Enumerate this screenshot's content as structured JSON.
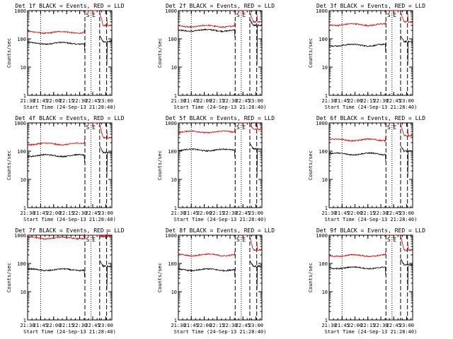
{
  "window": {
    "width": 640,
    "height": 480
  },
  "chart_data": [
    {
      "type": "line",
      "title": "Det 1f BLACK = Events, RED = LLD",
      "xlabel": "Start Time (24-Sep-13 21:28:40)",
      "ylabel": "Counts/sec",
      "yscale": "log",
      "ylim": [
        1,
        1000
      ],
      "xlim": [
        "21:30",
        "23:07"
      ],
      "x_ticks": [
        "21:30",
        "21:45",
        "22:00",
        "22:15",
        "22:30",
        "22:45",
        "23:00"
      ],
      "y_ticks": [
        "1",
        "10",
        "100",
        "1000"
      ],
      "series": [
        {
          "color": "#000000",
          "level_before": 70,
          "level_after": 80
        },
        {
          "color": "#e00000",
          "level_before": 170,
          "level_after": 300
        }
      ],
      "markers": [
        {
          "time": "21:45",
          "style": "dotted"
        },
        {
          "time": "22:36",
          "style": "dashed",
          "label": "S"
        },
        {
          "time": "22:43",
          "style": "dotted",
          "label": "E"
        },
        {
          "time": "22:53",
          "style": "dashed"
        },
        {
          "time": "23:01",
          "style": "dashed"
        }
      ]
    },
    {
      "type": "line",
      "title": "Det 2f BLACK = Events, RED = LLD",
      "xlabel": "Start Time (24-Sep-13 21:28:40)",
      "ylabel": "Counts/sec",
      "yscale": "log",
      "ylim": [
        1,
        1000
      ],
      "xlim": [
        "21:30",
        "23:07"
      ],
      "x_ticks": [
        "21:30",
        "21:45",
        "22:00",
        "22:15",
        "22:30",
        "22:45",
        "23:00"
      ],
      "y_ticks": [
        "1",
        "10",
        "100",
        "1000"
      ],
      "series": [
        {
          "color": "#000000",
          "level_before": 200,
          "level_after": 300
        },
        {
          "color": "#e00000",
          "level_before": 280,
          "level_after": 400
        }
      ],
      "markers": [
        {
          "time": "21:45",
          "style": "dotted"
        },
        {
          "time": "22:36",
          "style": "dashed",
          "label": "S"
        },
        {
          "time": "22:43",
          "style": "dotted",
          "label": "E"
        },
        {
          "time": "22:53",
          "style": "dashed"
        },
        {
          "time": "23:01",
          "style": "dashed"
        }
      ]
    },
    {
      "type": "line",
      "title": "Det 3f BLACK = Events, RED = LLD",
      "xlabel": "Start Time (24-Sep-13 21:28:40)",
      "ylabel": "Counts/sec",
      "yscale": "log",
      "ylim": [
        1,
        1000
      ],
      "xlim": [
        "21:30",
        "23:07"
      ],
      "x_ticks": [
        "21:30",
        "21:45",
        "22:00",
        "22:15",
        "22:30",
        "22:45",
        "23:00"
      ],
      "y_ticks": [
        "1",
        "10",
        "100",
        "1000"
      ],
      "series": [
        {
          "color": "#000000",
          "level_before": 60,
          "level_after": 80
        },
        {
          "color": "#e00000",
          "level_before": 320,
          "level_after": 400
        }
      ],
      "markers": [
        {
          "time": "21:45",
          "style": "dotted"
        },
        {
          "time": "22:36",
          "style": "dashed",
          "label": "S"
        },
        {
          "time": "22:43",
          "style": "dotted",
          "label": "E"
        },
        {
          "time": "22:53",
          "style": "dashed"
        },
        {
          "time": "23:01",
          "style": "dashed"
        }
      ]
    },
    {
      "type": "line",
      "title": "Det 4f BLACK = Events, RED = LLD",
      "xlabel": "Start Time (24-Sep-13 21:28:40)",
      "ylabel": "Counts/sec",
      "yscale": "log",
      "ylim": [
        1,
        1000
      ],
      "xlim": [
        "21:30",
        "23:07"
      ],
      "x_ticks": [
        "21:30",
        "21:45",
        "22:00",
        "22:15",
        "22:30",
        "22:45",
        "23:00"
      ],
      "y_ticks": [
        "1",
        "10",
        "100",
        "1000"
      ],
      "series": [
        {
          "color": "#000000",
          "level_before": 70,
          "level_after": 90
        },
        {
          "color": "#e00000",
          "level_before": 180,
          "level_after": 300
        }
      ],
      "markers": [
        {
          "time": "21:45",
          "style": "dotted"
        },
        {
          "time": "22:36",
          "style": "dashed",
          "label": "S"
        },
        {
          "time": "22:43",
          "style": "dotted",
          "label": "E"
        },
        {
          "time": "22:53",
          "style": "dashed"
        },
        {
          "time": "23:01",
          "style": "dashed"
        }
      ]
    },
    {
      "type": "line",
      "title": "Det 5f BLACK = Events, RED = LLD",
      "xlabel": "Start Time (24-Sep-13 21:28:40)",
      "ylabel": "Counts/sec",
      "yscale": "log",
      "ylim": [
        1,
        1000
      ],
      "xlim": [
        "21:30",
        "23:07"
      ],
      "x_ticks": [
        "21:30",
        "21:45",
        "22:00",
        "22:15",
        "22:30",
        "22:45",
        "23:00"
      ],
      "y_ticks": [
        "1",
        "10",
        "100",
        "1000"
      ],
      "series": [
        {
          "color": "#000000",
          "level_before": 110,
          "level_after": 120
        },
        {
          "color": "#e00000",
          "level_before": 480,
          "level_after": 600
        }
      ],
      "markers": [
        {
          "time": "21:45",
          "style": "dotted"
        },
        {
          "time": "22:36",
          "style": "dashed",
          "label": "S"
        },
        {
          "time": "22:43",
          "style": "dotted",
          "label": "E"
        },
        {
          "time": "22:53",
          "style": "dashed"
        },
        {
          "time": "23:01",
          "style": "dashed"
        }
      ]
    },
    {
      "type": "line",
      "title": "Det 6f BLACK = Events, RED = LLD",
      "xlabel": "Start Time (24-Sep-13 21:28:40)",
      "ylabel": "Counts/sec",
      "yscale": "log",
      "ylim": [
        1,
        1000
      ],
      "xlim": [
        "21:30",
        "23:07"
      ],
      "x_ticks": [
        "21:30",
        "21:45",
        "22:00",
        "22:15",
        "22:30",
        "22:45",
        "23:00"
      ],
      "y_ticks": [
        "1",
        "10",
        "100",
        "1000"
      ],
      "series": [
        {
          "color": "#000000",
          "level_before": 80,
          "level_after": 100
        },
        {
          "color": "#e00000",
          "level_before": 250,
          "level_after": 350
        }
      ],
      "markers": [
        {
          "time": "21:45",
          "style": "dotted"
        },
        {
          "time": "22:36",
          "style": "dashed",
          "label": "S"
        },
        {
          "time": "22:43",
          "style": "dotted",
          "label": "E"
        },
        {
          "time": "22:53",
          "style": "dashed"
        },
        {
          "time": "23:01",
          "style": "dashed"
        }
      ]
    },
    {
      "type": "line",
      "title": "Det 7f BLACK = Events, RED = LLD",
      "xlabel": "Start Time (24-Sep-13 21:28:40)",
      "ylabel": "Counts/sec",
      "yscale": "log",
      "ylim": [
        1,
        1000
      ],
      "xlim": [
        "21:30",
        "23:07"
      ],
      "x_ticks": [
        "21:30",
        "21:45",
        "22:00",
        "22:15",
        "22:30",
        "22:45",
        "23:00"
      ],
      "y_ticks": [
        "1",
        "10",
        "100",
        "1000"
      ],
      "series": [
        {
          "color": "#000000",
          "level_before": 60,
          "level_after": 80
        },
        {
          "color": "#e00000",
          "level_before": 800,
          "level_after": 900
        }
      ],
      "markers": [
        {
          "time": "21:45",
          "style": "dotted"
        },
        {
          "time": "22:36",
          "style": "dashed",
          "label": "S"
        },
        {
          "time": "22:43",
          "style": "dotted",
          "label": "E"
        },
        {
          "time": "22:53",
          "style": "dashed"
        },
        {
          "time": "23:01",
          "style": "dashed"
        }
      ]
    },
    {
      "type": "line",
      "title": "Det 8f BLACK = Events, RED = LLD",
      "xlabel": "Start Time (24-Sep-13 21:28:40)",
      "ylabel": "Counts/sec",
      "yscale": "log",
      "ylim": [
        1,
        1000
      ],
      "xlim": [
        "21:30",
        "23:07"
      ],
      "x_ticks": [
        "21:30",
        "21:45",
        "22:00",
        "22:15",
        "22:30",
        "22:45",
        "23:00"
      ],
      "y_ticks": [
        "1",
        "10",
        "100",
        "1000"
      ],
      "series": [
        {
          "color": "#000000",
          "level_before": 60,
          "level_after": 80
        },
        {
          "color": "#e00000",
          "level_before": 200,
          "level_after": 300
        }
      ],
      "markers": [
        {
          "time": "21:45",
          "style": "dotted"
        },
        {
          "time": "22:36",
          "style": "dashed",
          "label": "S"
        },
        {
          "time": "22:43",
          "style": "dotted",
          "label": "E"
        },
        {
          "time": "22:53",
          "style": "dashed"
        },
        {
          "time": "23:01",
          "style": "dashed"
        }
      ]
    },
    {
      "type": "line",
      "title": "Det 9f BLACK = Events, RED = LLD",
      "xlabel": "Start Time (24-Sep-13 21:28:40)",
      "ylabel": "Counts/sec",
      "yscale": "log",
      "ylim": [
        1,
        1000
      ],
      "xlim": [
        "21:30",
        "23:07"
      ],
      "x_ticks": [
        "21:30",
        "21:45",
        "22:00",
        "22:15",
        "22:30",
        "22:45",
        "23:00"
      ],
      "y_ticks": [
        "1",
        "10",
        "100",
        "1000"
      ],
      "series": [
        {
          "color": "#000000",
          "level_before": 70,
          "level_after": 90
        },
        {
          "color": "#e00000",
          "level_before": 190,
          "level_after": 300
        }
      ],
      "markers": [
        {
          "time": "21:45",
          "style": "dotted"
        },
        {
          "time": "22:36",
          "style": "dashed",
          "label": "S"
        },
        {
          "time": "22:43",
          "style": "dotted",
          "label": "E"
        },
        {
          "time": "22:53",
          "style": "dashed"
        },
        {
          "time": "23:01",
          "style": "dashed"
        }
      ]
    }
  ]
}
